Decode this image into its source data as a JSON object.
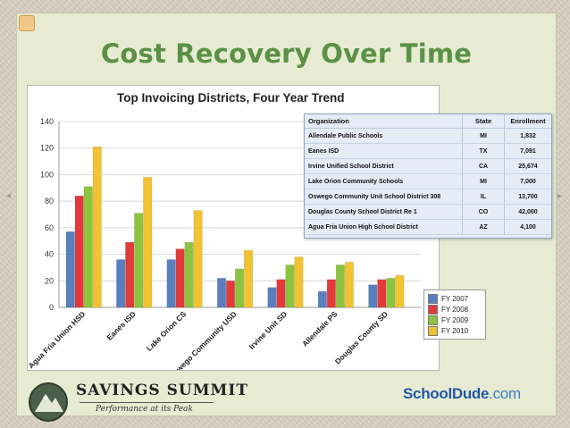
{
  "slide": {
    "title": "Cost Recovery Over Time"
  },
  "chart_data": {
    "type": "bar",
    "title": "Top Invoicing Districts, Four Year Trend",
    "categories": [
      "Agua Fria Union HSD",
      "Eanes ISD",
      "Lake Orion CS",
      "Oswego Community USD",
      "Irvine Unit SD",
      "Allendale PS",
      "Douglas County SD"
    ],
    "ylim": [
      0,
      140
    ],
    "yticks": [
      0,
      20,
      40,
      60,
      80,
      100,
      120,
      140
    ],
    "grid": true,
    "legend_position": "bottom-right",
    "series": [
      {
        "name": "FY 2007",
        "color": "#5a7fbf",
        "values": [
          57,
          36,
          36,
          22,
          15,
          12,
          17
        ]
      },
      {
        "name": "FY 2008",
        "color": "#e23a3a",
        "values": [
          84,
          49,
          44,
          20,
          21,
          21,
          21
        ]
      },
      {
        "name": "FY 2009",
        "color": "#8cc43f",
        "values": [
          91,
          71,
          49,
          29,
          32,
          32,
          22
        ]
      },
      {
        "name": "FY 2010",
        "color": "#f1c232",
        "values": [
          121,
          98,
          73,
          43,
          38,
          34,
          24
        ]
      }
    ]
  },
  "org_table": {
    "headers": [
      "Organization",
      "State",
      "Enrollment"
    ],
    "rows": [
      [
        "Allendale Public Schools",
        "MI",
        "1,832"
      ],
      [
        "Eanes ISD",
        "TX",
        "7,091"
      ],
      [
        "Irvine Unified School District",
        "CA",
        "25,674"
      ],
      [
        "Lake Orion Community Schools",
        "MI",
        "7,000"
      ],
      [
        "Oswego Community Unit School District 308",
        "IL",
        "13,700"
      ],
      [
        "Douglas County School District Re 1",
        "CO",
        "42,000"
      ],
      [
        "Agua Fria Union High School District",
        "AZ",
        "4,100"
      ]
    ]
  },
  "footer": {
    "brand_left": "SAVINGS SUMMIT",
    "brand_left_sub": "Performance at its Peak",
    "brand_right_main": "SchoolDude",
    "brand_right_suffix": ".com"
  }
}
